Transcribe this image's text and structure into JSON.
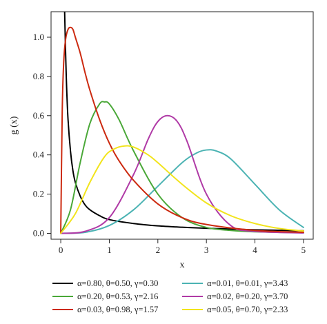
{
  "chart_data": {
    "type": "line",
    "xlabel": "x",
    "ylabel": "g (x)",
    "xlim": [
      -0.2,
      5.2
    ],
    "ylim": [
      -0.03,
      1.13
    ],
    "xticks": [
      "0",
      "1",
      "2",
      "3",
      "4",
      "5"
    ],
    "yticks": [
      "0.0",
      "0.2",
      "0.4",
      "0.6",
      "0.8",
      "1.0"
    ],
    "grid": false,
    "legend_position": "bottom",
    "series": [
      {
        "name": "α=0.80, θ=0.50, γ=0.30",
        "color": "#000000",
        "x": [
          0.08,
          0.1,
          0.12,
          0.15,
          0.2,
          0.25,
          0.3,
          0.4,
          0.5,
          0.6,
          0.8,
          1.0,
          1.5,
          2.0,
          2.5,
          3.0,
          4.0,
          5.0
        ],
        "y": [
          1.13,
          0.92,
          0.75,
          0.58,
          0.42,
          0.32,
          0.26,
          0.19,
          0.145,
          0.12,
          0.09,
          0.07,
          0.05,
          0.038,
          0.031,
          0.026,
          0.018,
          0.013
        ]
      },
      {
        "name": "α=0.01, θ=0.01, γ=3.43",
        "color": "#4bb3b3",
        "x": [
          0.0,
          0.5,
          1.0,
          1.5,
          2.0,
          2.5,
          2.8,
          3.0,
          3.2,
          3.5,
          4.0,
          4.5,
          5.0
        ],
        "y": [
          0.0,
          0.005,
          0.04,
          0.12,
          0.24,
          0.36,
          0.41,
          0.425,
          0.42,
          0.38,
          0.25,
          0.12,
          0.03
        ]
      },
      {
        "name": "α=0.20, θ=0.53, γ=2.16",
        "color": "#4aa838",
        "x": [
          0.0,
          0.2,
          0.4,
          0.6,
          0.8,
          0.9,
          1.0,
          1.2,
          1.5,
          2.0,
          2.5,
          3.0,
          3.5,
          4.0,
          5.0
        ],
        "y": [
          0.0,
          0.12,
          0.36,
          0.56,
          0.66,
          0.67,
          0.66,
          0.58,
          0.42,
          0.2,
          0.08,
          0.03,
          0.015,
          0.008,
          0.003
        ]
      },
      {
        "name": "α=0.02, θ=0.20, γ=3.70",
        "color": "#b03aa6",
        "x": [
          0.0,
          0.5,
          1.0,
          1.5,
          1.8,
          2.0,
          2.2,
          2.4,
          2.6,
          3.0,
          3.5,
          4.0,
          5.0
        ],
        "y": [
          0.0,
          0.01,
          0.08,
          0.3,
          0.48,
          0.57,
          0.6,
          0.57,
          0.47,
          0.2,
          0.04,
          0.01,
          0.002
        ]
      },
      {
        "name": "α=0.03, θ=0.98, γ=1.57",
        "color": "#cc2a10",
        "x": [
          0.0,
          0.03,
          0.06,
          0.1,
          0.15,
          0.2,
          0.25,
          0.3,
          0.4,
          0.5,
          0.6,
          0.8,
          1.0,
          1.2,
          1.5,
          2.0,
          2.5,
          3.0,
          4.0,
          5.0
        ],
        "y": [
          0.0,
          0.62,
          0.87,
          0.99,
          1.04,
          1.05,
          1.04,
          1.0,
          0.92,
          0.82,
          0.73,
          0.58,
          0.46,
          0.37,
          0.27,
          0.15,
          0.08,
          0.045,
          0.015,
          0.005
        ]
      },
      {
        "name": "α=0.05, θ=0.70, γ=2.33",
        "color": "#f2e41c",
        "x": [
          0.0,
          0.3,
          0.6,
          0.9,
          1.1,
          1.3,
          1.5,
          1.8,
          2.0,
          2.5,
          3.0,
          3.5,
          4.0,
          4.5,
          5.0
        ],
        "y": [
          0.0,
          0.1,
          0.26,
          0.39,
          0.43,
          0.445,
          0.44,
          0.4,
          0.36,
          0.25,
          0.155,
          0.09,
          0.05,
          0.025,
          0.012
        ]
      }
    ]
  }
}
